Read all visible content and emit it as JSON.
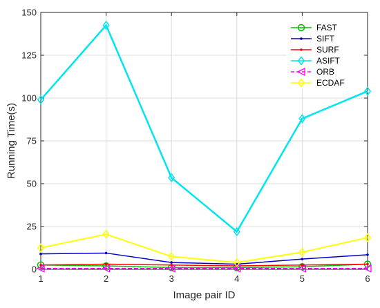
{
  "chart_data": {
    "type": "line",
    "xlabel": "Image pair ID",
    "ylabel": "Running Time(s)",
    "x": [
      1,
      2,
      3,
      4,
      5,
      6
    ],
    "xlim": [
      1,
      6
    ],
    "ylim": [
      0,
      150
    ],
    "xticks": [
      "1",
      "2",
      "3",
      "4",
      "5",
      "6"
    ],
    "yticks": [
      "0",
      "25",
      "50",
      "75",
      "100",
      "125",
      "150"
    ],
    "grid": true,
    "legend_position": "top-right",
    "series": [
      {
        "name": "FAST",
        "color": "#00c000",
        "marker": "circle",
        "dash": "solid",
        "values": [
          2.5,
          2.0,
          1.0,
          1.0,
          1.5,
          3.0
        ]
      },
      {
        "name": "SIFT",
        "color": "#0000cc",
        "marker": "point",
        "dash": "solid",
        "values": [
          9.0,
          9.5,
          4.0,
          3.0,
          6.0,
          8.5
        ]
      },
      {
        "name": "SURF",
        "color": "#ff0000",
        "marker": "point",
        "dash": "solid",
        "values": [
          2.5,
          3.0,
          2.5,
          2.0,
          2.5,
          3.0
        ]
      },
      {
        "name": "ASIFT",
        "color": "#00e5ee",
        "marker": "diamond",
        "dash": "solid",
        "values": [
          99.0,
          142.5,
          53.5,
          22.0,
          88.0,
          104.0
        ]
      },
      {
        "name": "ORB",
        "color": "#ff00ff",
        "marker": "triangle-left",
        "dash": "dashed",
        "values": [
          0.5,
          0.5,
          0.5,
          0.5,
          0.5,
          0.5
        ]
      },
      {
        "name": "ECDAF",
        "color": "#ffff00",
        "marker": "diamond",
        "dash": "solid",
        "values": [
          12.5,
          20.5,
          7.5,
          4.0,
          10.0,
          18.5
        ]
      }
    ]
  }
}
